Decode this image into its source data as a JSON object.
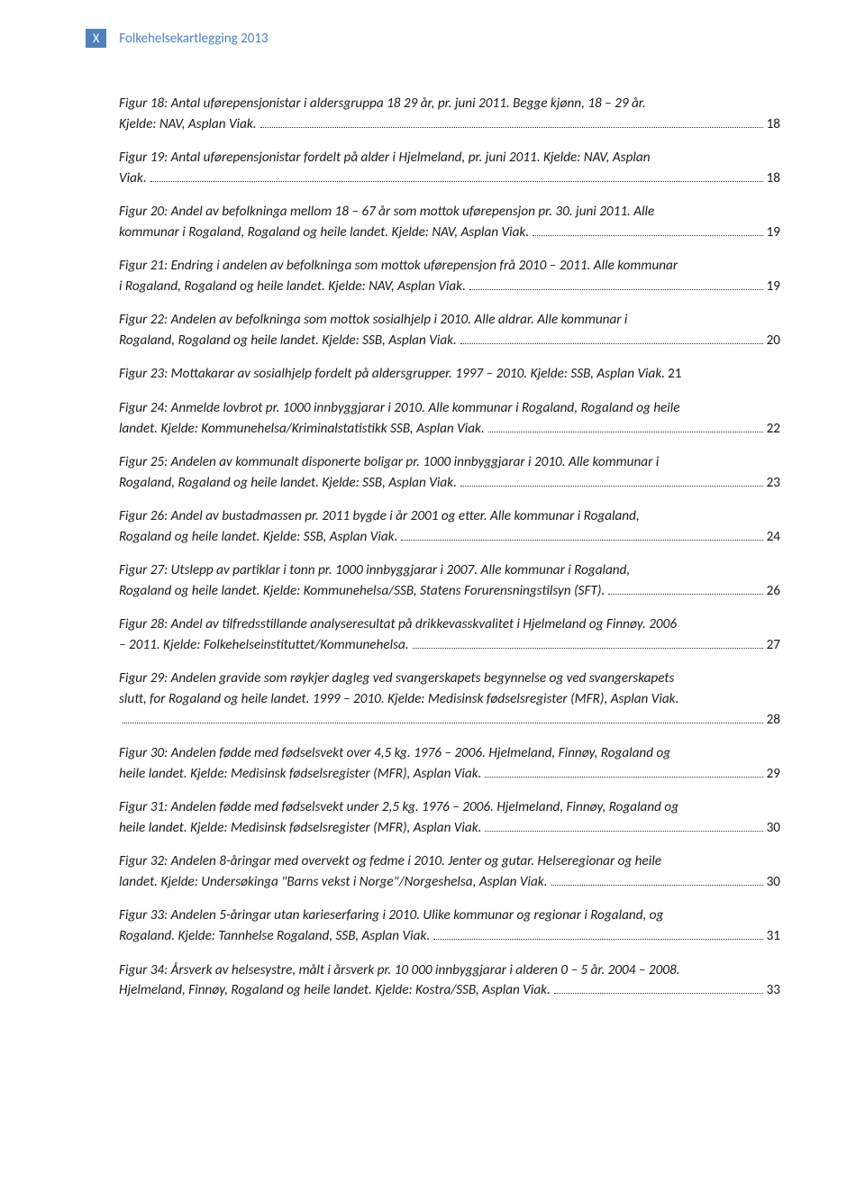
{
  "header": {
    "badge": "X",
    "title": "Folkehelsekartlegging 2013"
  },
  "colors": {
    "accent": "#4f81bd",
    "text": "#1a1a1a",
    "bg": "#ffffff"
  },
  "entries": [
    {
      "text1": "Figur 18: Antal uførepensjonistar i aldersgruppa 18 29 år, pr. juni 2011. Begge kjønn, 18 – 29 år.",
      "text2": "Kjelde: NAV, Asplan Viak.",
      "page": "18"
    },
    {
      "text1": "Figur 19: Antal uførepensjonistar fordelt på alder i Hjelmeland, pr. juni 2011. Kjelde: NAV, Asplan",
      "text2": "Viak.",
      "page": "18"
    },
    {
      "text1": "Figur 20: Andel av befolkninga mellom 18 – 67 år som mottok uførepensjon pr. 30. juni 2011. Alle",
      "text2": "kommunar i Rogaland, Rogaland og heile landet. Kjelde: NAV, Asplan Viak.",
      "page": "19"
    },
    {
      "text1": "Figur 21: Endring i andelen av befolkninga som mottok uførepensjon frå 2010 – 2011. Alle kommunar",
      "text2": "i Rogaland, Rogaland og heile landet. Kjelde: NAV, Asplan Viak.",
      "page": "19"
    },
    {
      "text1": "Figur 22: Andelen av befolkninga som mottok sosialhjelp i 2010. Alle aldrar. Alle kommunar i",
      "text2": "Rogaland, Rogaland og heile landet. Kjelde: SSB, Asplan Viak.",
      "page": "20"
    },
    {
      "text1": "Figur 23: Mottakarar av sosialhjelp fordelt på aldersgrupper. 1997 – 2010. Kjelde: SSB, Asplan Viak.",
      "text2": "",
      "page": "21",
      "inline": true
    },
    {
      "text1": "Figur 24: Anmelde lovbrot pr. 1000 innbyggjarar i 2010. Alle kommunar i Rogaland, Rogaland og heile",
      "text2": "landet. Kjelde: Kommunehelsa/Kriminalstatistikk SSB, Asplan Viak.",
      "page": "22"
    },
    {
      "text1": "Figur 25: Andelen av kommunalt disponerte boligar pr. 1000 innbyggjarar i 2010. Alle kommunar i",
      "text2": "Rogaland, Rogaland og heile landet. Kjelde: SSB, Asplan Viak.",
      "page": "23"
    },
    {
      "text1": "Figur 26: Andel av bustadmassen pr. 2011 bygde i år 2001 og etter. Alle kommunar i Rogaland,",
      "text2": "Rogaland og heile landet. Kjelde: SSB, Asplan Viak.",
      "page": "24"
    },
    {
      "text1": "Figur 27: Utslepp av partiklar i tonn pr. 1000 innbyggjarar i 2007. Alle kommunar i Rogaland,",
      "text2": "Rogaland og heile landet. Kjelde: Kommunehelsa/SSB, Statens Forurensningstilsyn (SFT).",
      "page": "26"
    },
    {
      "text1": "Figur 28: Andel av tilfredsstillande analyseresultat på drikkevasskvalitet i Hjelmeland og Finnøy. 2006",
      "text2": "– 2011. Kjelde: Folkehelseinstituttet/Kommunehelsa.",
      "page": "27"
    },
    {
      "text1": "Figur 29: Andelen gravide som røykjer dagleg ved svangerskapets begynnelse og ved svangerskapets",
      "text2": "slutt, for Rogaland og heile landet. 1999 – 2010. Kjelde: Medisinsk fødselsregister (MFR), Asplan Viak.",
      "text3": "",
      "page": "28"
    },
    {
      "text1": "Figur 30: Andelen fødde med fødselsvekt over 4,5 kg. 1976 – 2006. Hjelmeland, Finnøy, Rogaland og",
      "text2": "heile landet. Kjelde: Medisinsk fødselsregister (MFR), Asplan Viak.",
      "page": "29"
    },
    {
      "text1": "Figur 31: Andelen fødde med fødselsvekt under 2,5 kg. 1976 – 2006. Hjelmeland, Finnøy, Rogaland og",
      "text2": "heile landet. Kjelde: Medisinsk fødselsregister (MFR), Asplan Viak.",
      "page": "30"
    },
    {
      "text1": "Figur 32: Andelen 8-åringar med overvekt og fedme i 2010. Jenter og gutar. Helseregionar og heile",
      "text2": "landet. Kjelde: Undersøkinga \"Barns vekst i Norge\"/Norgeshelsa, Asplan Viak.",
      "page": "30"
    },
    {
      "text1": "Figur 33: Andelen 5-åringar utan karieserfaring i 2010. Ulike kommunar og regionar i Rogaland, og",
      "text2": "Rogaland. Kjelde: Tannhelse Rogaland, SSB, Asplan Viak.",
      "page": "31"
    },
    {
      "text1": "Figur 34: Årsverk av helsesystre, målt i årsverk pr. 10 000 innbyggjarar i alderen 0 – 5 år. 2004 – 2008.",
      "text2": "Hjelmeland, Finnøy, Rogaland og heile landet. Kjelde: Kostra/SSB, Asplan Viak.",
      "page": "33"
    }
  ]
}
